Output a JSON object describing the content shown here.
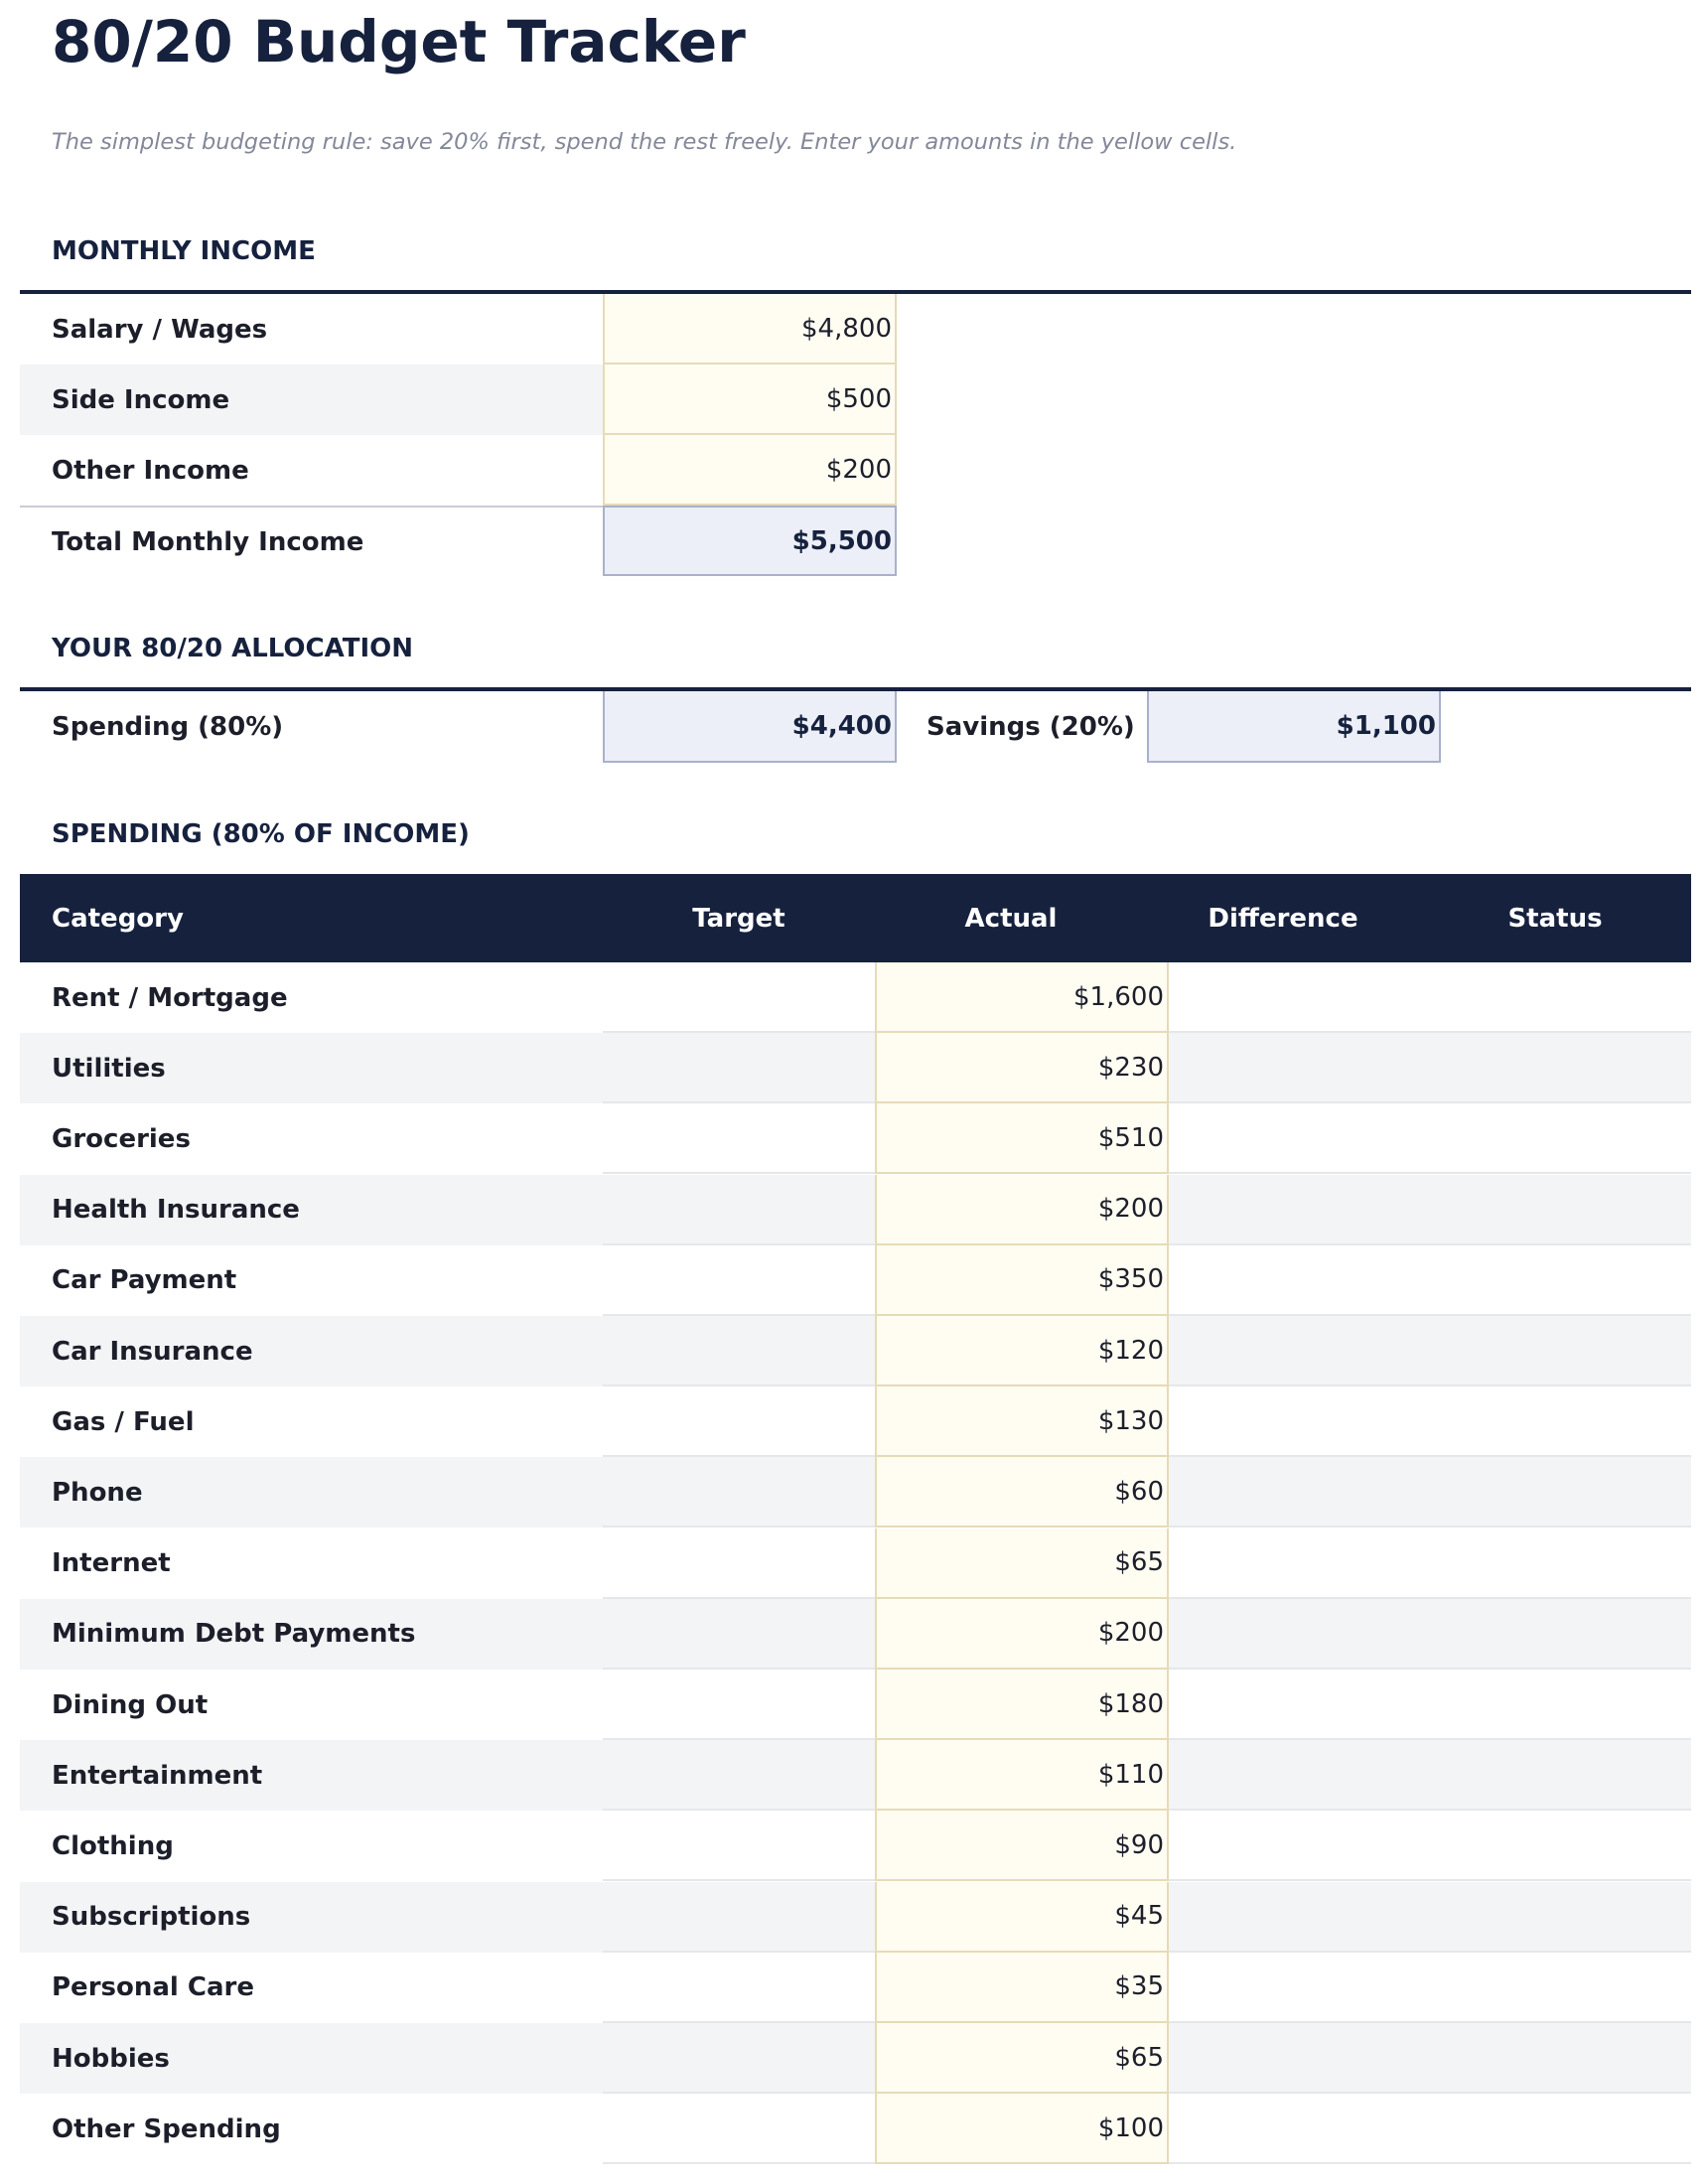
{
  "title": "80/20 Budget Tracker",
  "subtitle": "The simplest budgeting rule: save 20% first, spend the rest freely. Enter your amounts in the yellow cells.",
  "income": {
    "heading": "MONTHLY INCOME",
    "rows": [
      {
        "label": "Salary / Wages",
        "value": "$4,800"
      },
      {
        "label": "Side Income",
        "value": "$500"
      },
      {
        "label": "Other Income",
        "value": "$200"
      }
    ],
    "total_label": "Total Monthly Income",
    "total_value": "$5,500"
  },
  "allocation": {
    "heading": "YOUR 80/20 ALLOCATION",
    "spending_label": "Spending (80%)",
    "spending_value": "$4,400",
    "savings_label": "Savings (20%)",
    "savings_value": "$1,100"
  },
  "spending": {
    "heading": "SPENDING (80% OF INCOME)",
    "columns": [
      "Category",
      "Target",
      "Actual",
      "Difference",
      "Status"
    ],
    "rows": [
      {
        "category": "Rent / Mortgage",
        "actual": "$1,600"
      },
      {
        "category": "Utilities",
        "actual": "$230"
      },
      {
        "category": "Groceries",
        "actual": "$510"
      },
      {
        "category": "Health Insurance",
        "actual": "$200"
      },
      {
        "category": "Car Payment",
        "actual": "$350"
      },
      {
        "category": "Car Insurance",
        "actual": "$120"
      },
      {
        "category": "Gas / Fuel",
        "actual": "$130"
      },
      {
        "category": "Phone",
        "actual": "$60"
      },
      {
        "category": "Internet",
        "actual": "$65"
      },
      {
        "category": "Minimum Debt Payments",
        "actual": "$200"
      },
      {
        "category": "Dining Out",
        "actual": "$180"
      },
      {
        "category": "Entertainment",
        "actual": "$110"
      },
      {
        "category": "Clothing",
        "actual": "$90"
      },
      {
        "category": "Subscriptions",
        "actual": "$45"
      },
      {
        "category": "Personal Care",
        "actual": "$35"
      },
      {
        "category": "Hobbies",
        "actual": "$65"
      },
      {
        "category": "Other Spending",
        "actual": "$100"
      }
    ]
  },
  "colors": {
    "navy": "#16213e",
    "input_yellow": "#fffcf2",
    "total_blue": "#eceff7",
    "stripe": "#f3f4f6"
  }
}
